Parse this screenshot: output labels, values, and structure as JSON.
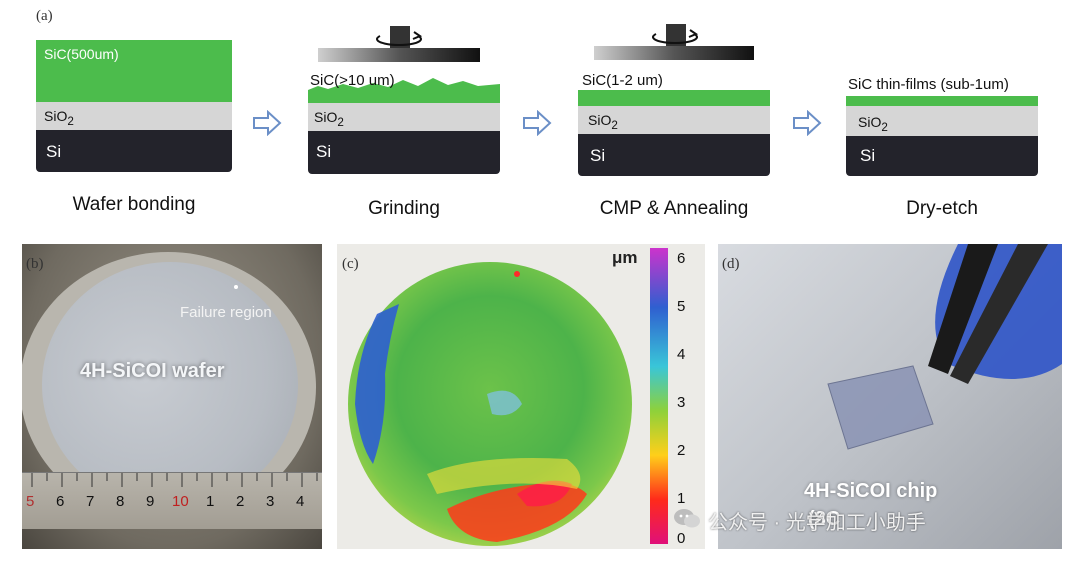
{
  "panel_a": {
    "label": "(a)",
    "steps": [
      {
        "caption": "Wafer bonding",
        "sic": "SiC(500um)",
        "sio2_base": "SiO",
        "sio2_sub": "2",
        "si": "Si"
      },
      {
        "caption": "Grinding",
        "sic": "SiC(>10 um)",
        "sio2_base": "SiO",
        "sio2_sub": "2",
        "si": "Si"
      },
      {
        "caption": "CMP & Annealing",
        "sic": "SiC(1-2 um)",
        "sio2_base": "SiO",
        "sio2_sub": "2",
        "si": "Si"
      },
      {
        "caption": "Dry-etch",
        "sic": "SiC thin-films (sub-1um)",
        "sio2_base": "SiO",
        "sio2_sub": "2",
        "si": "Si"
      }
    ]
  },
  "panel_b": {
    "label": "(b)",
    "wafer_text": "4H-SiCOI wafer",
    "annotation": "Failure region",
    "ruler": [
      "5",
      "6",
      "7",
      "8",
      "9",
      "10",
      "1",
      "2",
      "3",
      "4"
    ]
  },
  "panel_c": {
    "label": "(c)",
    "unit": "μm",
    "scale_ticks": [
      "6",
      "5",
      "4",
      "3",
      "2",
      "1",
      "0"
    ],
    "colors": {
      "low": "#e0107a",
      "mid": "#39b54a",
      "high": "#cc33cc"
    }
  },
  "panel_d": {
    "label": "(d)",
    "chip_text": "4H-SiCOI chip",
    "chip_sub": "(8C"
  },
  "watermark": "公众号 · 光学加工小助手"
}
